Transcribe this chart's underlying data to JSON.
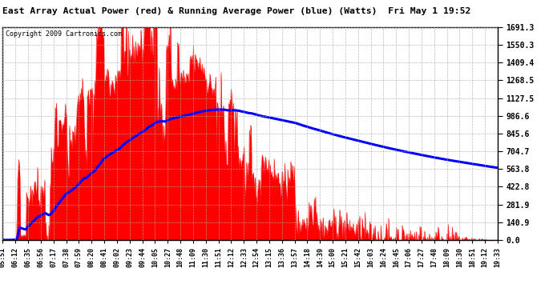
{
  "title": "East Array Actual Power (red) & Running Average Power (blue) (Watts)  Fri May 1 19:52",
  "copyright": "Copyright 2009 Cartronics.com",
  "yticks": [
    0.0,
    140.9,
    281.9,
    422.8,
    563.8,
    704.7,
    845.6,
    986.6,
    1127.5,
    1268.5,
    1409.4,
    1550.3,
    1691.3
  ],
  "ymax": 1691.3,
  "bg_color": "#ffffff",
  "plot_bg_color": "#ffffff",
  "grid_color": "#aaaaaa",
  "actual_color": "#ff0000",
  "avg_color": "#0000ff",
  "xtick_labels": [
    "05:51",
    "06:12",
    "06:35",
    "06:56",
    "07:17",
    "07:38",
    "07:59",
    "08:20",
    "08:41",
    "09:02",
    "09:23",
    "09:44",
    "10:05",
    "10:27",
    "10:48",
    "11:09",
    "11:30",
    "11:51",
    "12:12",
    "12:33",
    "12:54",
    "13:15",
    "13:36",
    "13:57",
    "14:18",
    "14:39",
    "15:00",
    "15:21",
    "15:42",
    "16:03",
    "16:24",
    "16:45",
    "17:06",
    "17:27",
    "17:48",
    "18:09",
    "18:30",
    "18:51",
    "19:12",
    "19:33"
  ]
}
